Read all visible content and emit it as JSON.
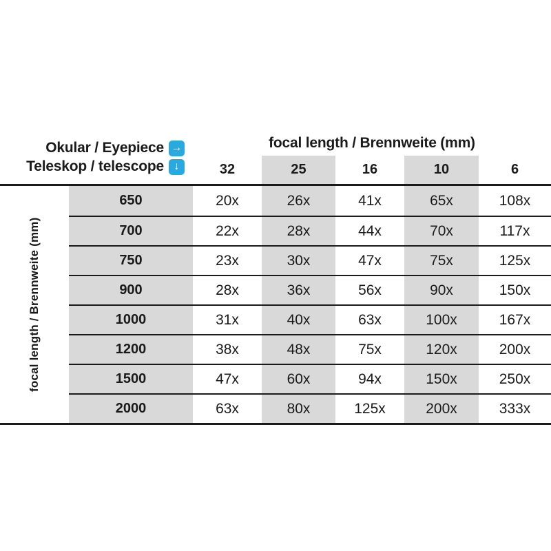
{
  "colors": {
    "accent": "#29a9e0",
    "stripe": "#d9d9d9",
    "line": "#1a1a1a",
    "text": "#1a1a1a"
  },
  "corner": {
    "line1": "Okular / Eyepiece",
    "line2": "Teleskop / telescope",
    "right_arrow": "→",
    "down_arrow": "↓"
  },
  "eyepiece_axis_title": "focal length / Brennweite (mm)",
  "telescope_axis_title": "focal length / Brennweite (mm)",
  "columns": [
    "32",
    "25",
    "16",
    "10",
    "6"
  ],
  "rows": [
    {
      "telescope": "650",
      "values": [
        "20x",
        "26x",
        "41x",
        "65x",
        "108x"
      ]
    },
    {
      "telescope": "700",
      "values": [
        "22x",
        "28x",
        "44x",
        "70x",
        "117x"
      ]
    },
    {
      "telescope": "750",
      "values": [
        "23x",
        "30x",
        "47x",
        "75x",
        "125x"
      ]
    },
    {
      "telescope": "900",
      "values": [
        "28x",
        "36x",
        "56x",
        "90x",
        "150x"
      ]
    },
    {
      "telescope": "1000",
      "values": [
        "31x",
        "40x",
        "63x",
        "100x",
        "167x"
      ]
    },
    {
      "telescope": "1200",
      "values": [
        "38x",
        "48x",
        "75x",
        "120x",
        "200x"
      ]
    },
    {
      "telescope": "1500",
      "values": [
        "47x",
        "60x",
        "94x",
        "150x",
        "250x"
      ]
    },
    {
      "telescope": "2000",
      "values": [
        "63x",
        "80x",
        "125x",
        "200x",
        "333x"
      ]
    }
  ],
  "chart_data": {
    "type": "table",
    "column_axis_title": "focal length / Brennweite (mm)",
    "row_axis_title": "focal length / Brennweite (mm)",
    "column_legend": "Okular / Eyepiece",
    "row_legend": "Teleskop / telescope",
    "eyepiece_focal_lengths_mm": [
      32,
      25,
      16,
      10,
      6
    ],
    "telescope_focal_lengths_mm": [
      650,
      700,
      750,
      900,
      1000,
      1200,
      1500,
      2000
    ],
    "magnifications": [
      [
        20,
        26,
        41,
        65,
        108
      ],
      [
        22,
        28,
        44,
        70,
        117
      ],
      [
        23,
        30,
        47,
        75,
        125
      ],
      [
        28,
        36,
        56,
        90,
        150
      ],
      [
        31,
        40,
        63,
        100,
        167
      ],
      [
        38,
        48,
        75,
        120,
        200
      ],
      [
        47,
        60,
        94,
        150,
        250
      ],
      [
        63,
        80,
        125,
        200,
        333
      ]
    ]
  }
}
